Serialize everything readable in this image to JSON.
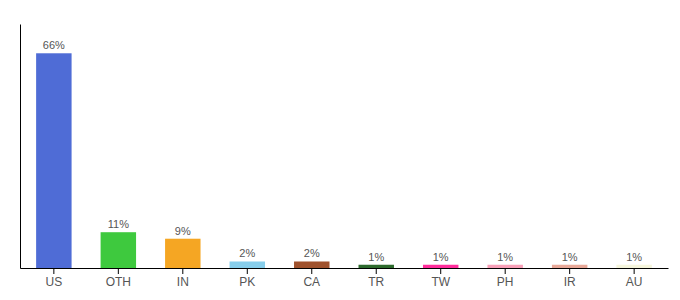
{
  "chart_data": {
    "type": "bar",
    "categories": [
      "US",
      "OTH",
      "IN",
      "PK",
      "CA",
      "TR",
      "TW",
      "PH",
      "IR",
      "AU"
    ],
    "values": [
      66,
      11,
      9,
      2,
      2,
      1,
      1,
      1,
      1,
      1
    ],
    "value_labels": [
      "66%",
      "11%",
      "9%",
      "2%",
      "2%",
      "1%",
      "1%",
      "1%",
      "1%",
      "1%"
    ],
    "colors": [
      "#4f6cd6",
      "#3ec93e",
      "#f5a623",
      "#87ceeb",
      "#a0522d",
      "#2d6a2d",
      "#ff2d9b",
      "#f8a0b8",
      "#e8a898",
      "#f5f5dc"
    ],
    "ylim": [
      0,
      75
    ],
    "data_labels": true,
    "tick_labels": "x"
  }
}
